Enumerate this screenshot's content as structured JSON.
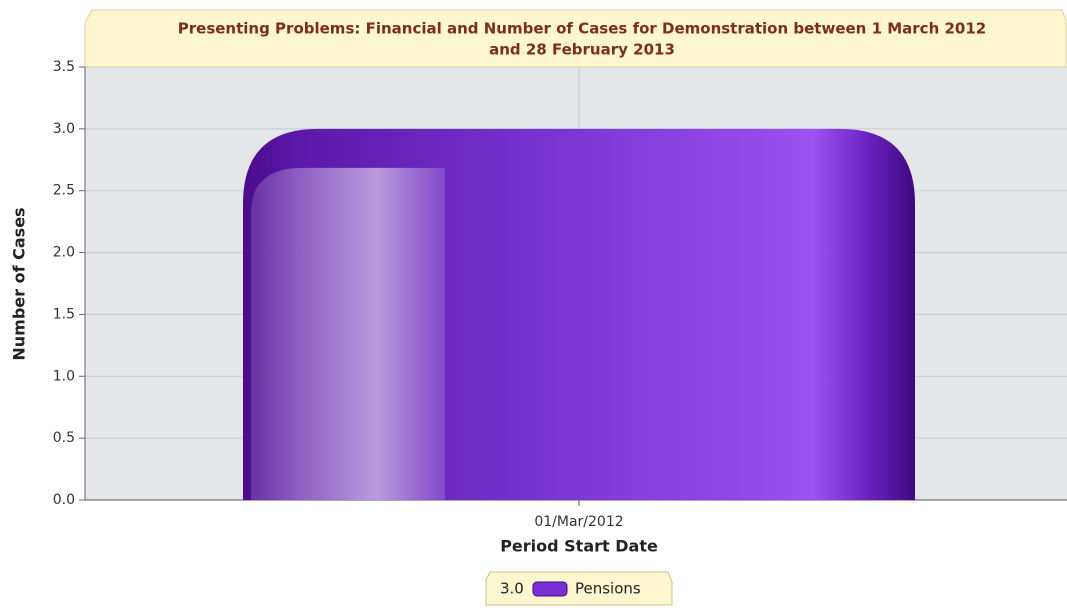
{
  "chart_data": {
    "type": "bar",
    "title_lines": [
      "Presenting Problems: Financial and Number of Cases for Demonstration between 1 March 2012",
      "and 28 February 2013"
    ],
    "categories": [
      "01/Mar/2012"
    ],
    "series": [
      {
        "name": "Pensions",
        "color": "#7a2fd6",
        "values": [
          3
        ],
        "value_labels": [
          "3.0"
        ]
      }
    ],
    "x_label": "Period Start Date",
    "y_label": "Number of Cases",
    "ylim": [
      0,
      3.5
    ],
    "yticks": [
      {
        "value": 0,
        "label": "0.0"
      },
      0.5,
      {
        "value": 1,
        "label": "1.0"
      },
      1.5,
      {
        "value": 2,
        "label": "2.0"
      },
      2.5,
      {
        "value": 3,
        "label": "3.0"
      },
      3.5
    ],
    "grid": true,
    "legend": "bottom"
  }
}
